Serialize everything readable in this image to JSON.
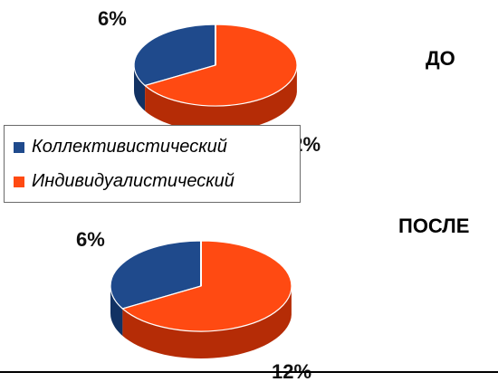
{
  "colors": {
    "collectivist": "#1f4a8c",
    "collectivist_dark": "#123263",
    "individualist": "#ff4a12",
    "individualist_dark": "#b52c06",
    "background": "#ffffff",
    "text": "#000000"
  },
  "legend": {
    "items": [
      {
        "label": "Коллективистический",
        "color": "#1f4a8c"
      },
      {
        "label": "Индивидуалистический",
        "color": "#ff4a12"
      }
    ]
  },
  "chart_data": [
    {
      "type": "pie",
      "title": "ДО",
      "categories": [
        "Коллективистический",
        "Индивидуалистический"
      ],
      "data_labels": [
        "6%",
        "12%"
      ],
      "values": [
        6,
        12
      ],
      "legend": "left"
    },
    {
      "type": "pie",
      "title": "ПОСЛЕ",
      "categories": [
        "Коллективистический",
        "Индивидуалистический"
      ],
      "data_labels": [
        "6%",
        "12%"
      ],
      "values": [
        6,
        12
      ]
    }
  ]
}
